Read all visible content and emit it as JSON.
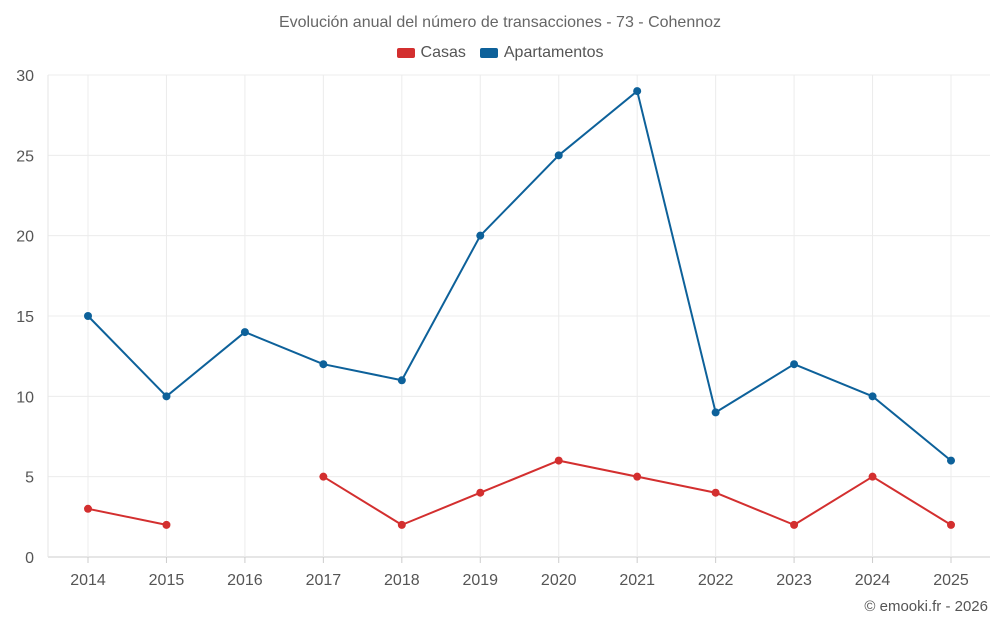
{
  "chart_data": {
    "type": "line",
    "title": "Evolución anual del número de transacciones - 73 - Cohennoz",
    "xlabel": "",
    "ylabel": "",
    "categories": [
      "2014",
      "2015",
      "2016",
      "2017",
      "2018",
      "2019",
      "2020",
      "2021",
      "2022",
      "2023",
      "2024",
      "2025"
    ],
    "ylim": [
      0,
      30
    ],
    "yticks": [
      0,
      5,
      10,
      15,
      20,
      25,
      30
    ],
    "grid": true,
    "legend_position": "top-center",
    "series": [
      {
        "name": "Casas",
        "color": "#d32f2f",
        "values": [
          3,
          2,
          null,
          5,
          2,
          4,
          6,
          5,
          4,
          2,
          5,
          2
        ]
      },
      {
        "name": "Apartamentos",
        "color": "#0d619a",
        "values": [
          15,
          10,
          14,
          12,
          11,
          20,
          25,
          29,
          9,
          12,
          10,
          6
        ]
      }
    ]
  },
  "credit": "© emooki.fr - 2026"
}
